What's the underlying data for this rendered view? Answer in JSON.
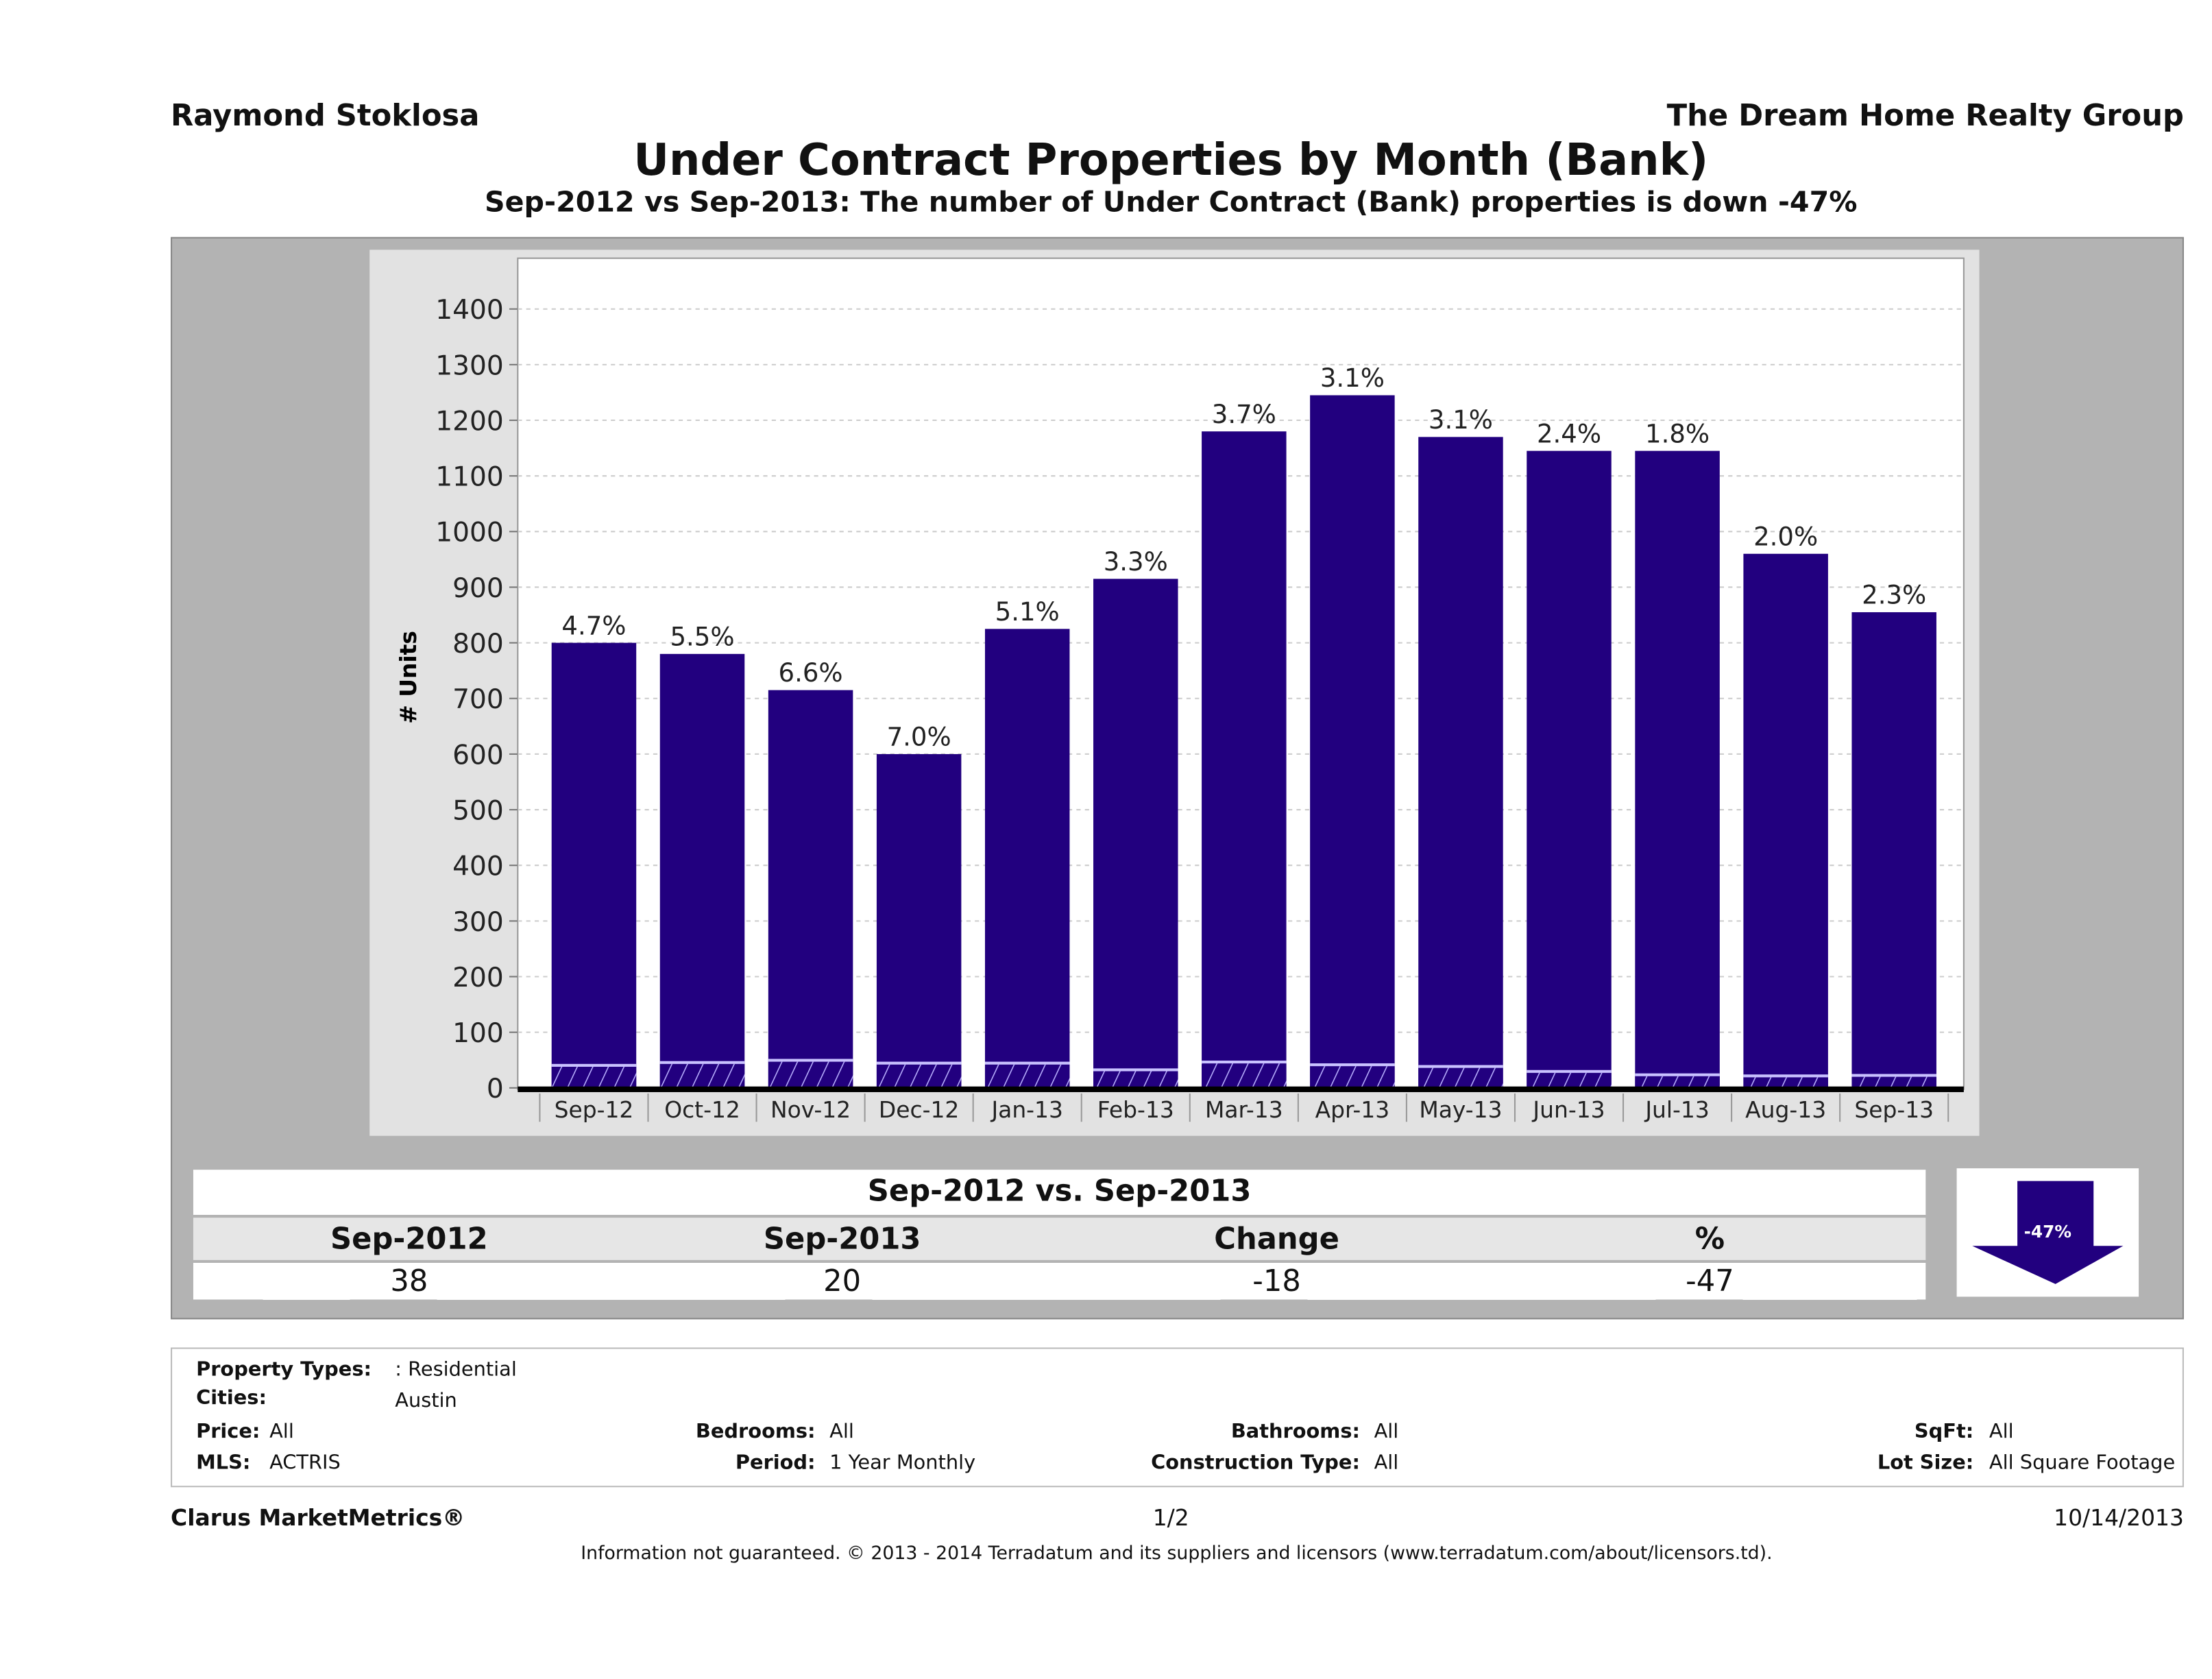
{
  "header": {
    "agent": "Raymond Stoklosa",
    "company": "The Dream Home Realty Group"
  },
  "chart_data": {
    "type": "bar",
    "title": "Under Contract Properties by Month (Bank)",
    "subtitle": "Sep-2012 vs Sep-2013: The number of Under Contract (Bank)  properties is down -47%",
    "ylabel": "# Units",
    "xlabel": "",
    "ylim": [
      0,
      1400
    ],
    "yticks": [
      0,
      100,
      200,
      300,
      400,
      500,
      600,
      700,
      800,
      900,
      1000,
      1100,
      1200,
      1300,
      1400
    ],
    "grid": true,
    "categories": [
      "Sep-12",
      "Oct-12",
      "Nov-12",
      "Dec-12",
      "Jan-13",
      "Feb-13",
      "Mar-13",
      "Apr-13",
      "May-13",
      "Jun-13",
      "Jul-13",
      "Aug-13",
      "Sep-13"
    ],
    "series": [
      {
        "values": [
          800,
          780,
          715,
          600,
          825,
          915,
          1180,
          1245,
          1170,
          1145,
          1145,
          960,
          855
        ],
        "color": "#22007f"
      },
      {
        "values": [
          38,
          43,
          47,
          42,
          42,
          30,
          44,
          39,
          36,
          27,
          21,
          19,
          20
        ],
        "color": "#22007f",
        "pattern": "hatched"
      }
    ],
    "data_labels": [
      "4.7%",
      "5.5%",
      "6.6%",
      "7.0%",
      "5.1%",
      "3.3%",
      "3.7%",
      "3.1%",
      "3.1%",
      "2.4%",
      "1.8%",
      "2.0%",
      "2.3%"
    ]
  },
  "comparison": {
    "title": "Sep-2012 vs. Sep-2013",
    "headers": [
      "Sep-2012",
      "Sep-2013",
      "Change",
      "%"
    ],
    "values": [
      "38",
      "20",
      "-18",
      "-47"
    ],
    "badge": "-47%",
    "badge_direction": "down",
    "badge_color": "#22007f"
  },
  "filters": {
    "property_types_label": "Property Types:",
    "property_types": ": Residential",
    "cities_label": "Cities:",
    "cities": "Austin",
    "price_label": "Price:",
    "price": "All",
    "mls_label": "MLS:",
    "mls": "ACTRIS",
    "bedrooms_label": "Bedrooms:",
    "bedrooms": "All",
    "period_label": "Period:",
    "period": "1 Year Monthly",
    "bathrooms_label": "Bathrooms:",
    "bathrooms": "All",
    "construction_label": "Construction Type:",
    "construction": "All",
    "sqft_label": "SqFt:",
    "sqft": "All",
    "lot_label": "Lot Size:",
    "lot": "All Square Footage"
  },
  "footer": {
    "brand": "Clarus MarketMetrics®",
    "page": "1/2",
    "date": "10/14/2013",
    "disclaimer": "Information not guaranteed. © 2013 - 2014 Terradatum and its suppliers and licensors (www.terradatum.com/about/licensors.td)."
  }
}
